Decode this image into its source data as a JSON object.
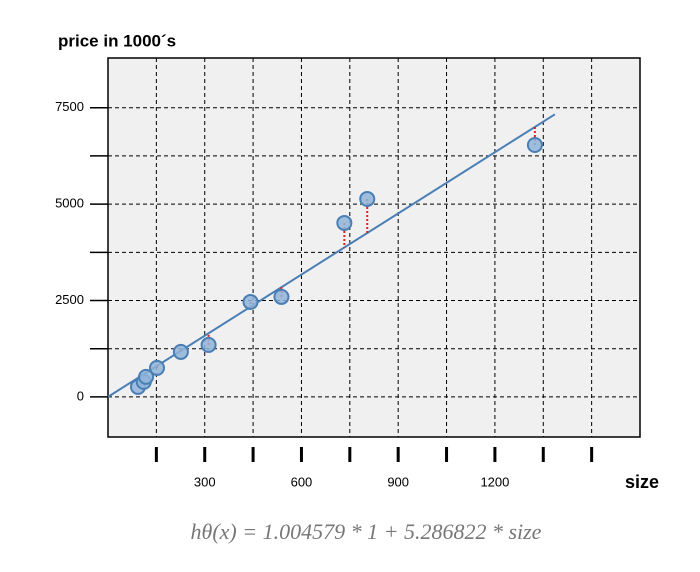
{
  "chart_data": {
    "type": "scatter",
    "y_label": "price in 1000´s",
    "x_label": "size",
    "formula": "hθ(x) = 1.004579 * 1 + 5.286822 * size",
    "intercept": 1.004579,
    "slope": 5.286822,
    "x": [
      93,
      111,
      118,
      152,
      226,
      312,
      442,
      538,
      733,
      804,
      1324
    ],
    "values": [
      259,
      389,
      519,
      752,
      1167,
      1348,
      2463,
      2593,
      4512,
      5134,
      6534
    ],
    "color": "#8fb4d9",
    "line_color": "#4a7fb5",
    "residual_color": "#e02020",
    "xlim": [
      0,
      1650
    ],
    "ylim": [
      -1040,
      8790
    ],
    "xticks": [
      300,
      600,
      900,
      1200
    ],
    "yticks": [
      0,
      2500,
      5000,
      7500
    ],
    "xgrid": [
      150,
      300,
      450,
      600,
      750,
      900,
      1050,
      1200,
      1350,
      1500
    ],
    "ygrid": [
      0,
      1250,
      2500,
      3750,
      5000,
      6250,
      7500
    ],
    "grid": true
  }
}
